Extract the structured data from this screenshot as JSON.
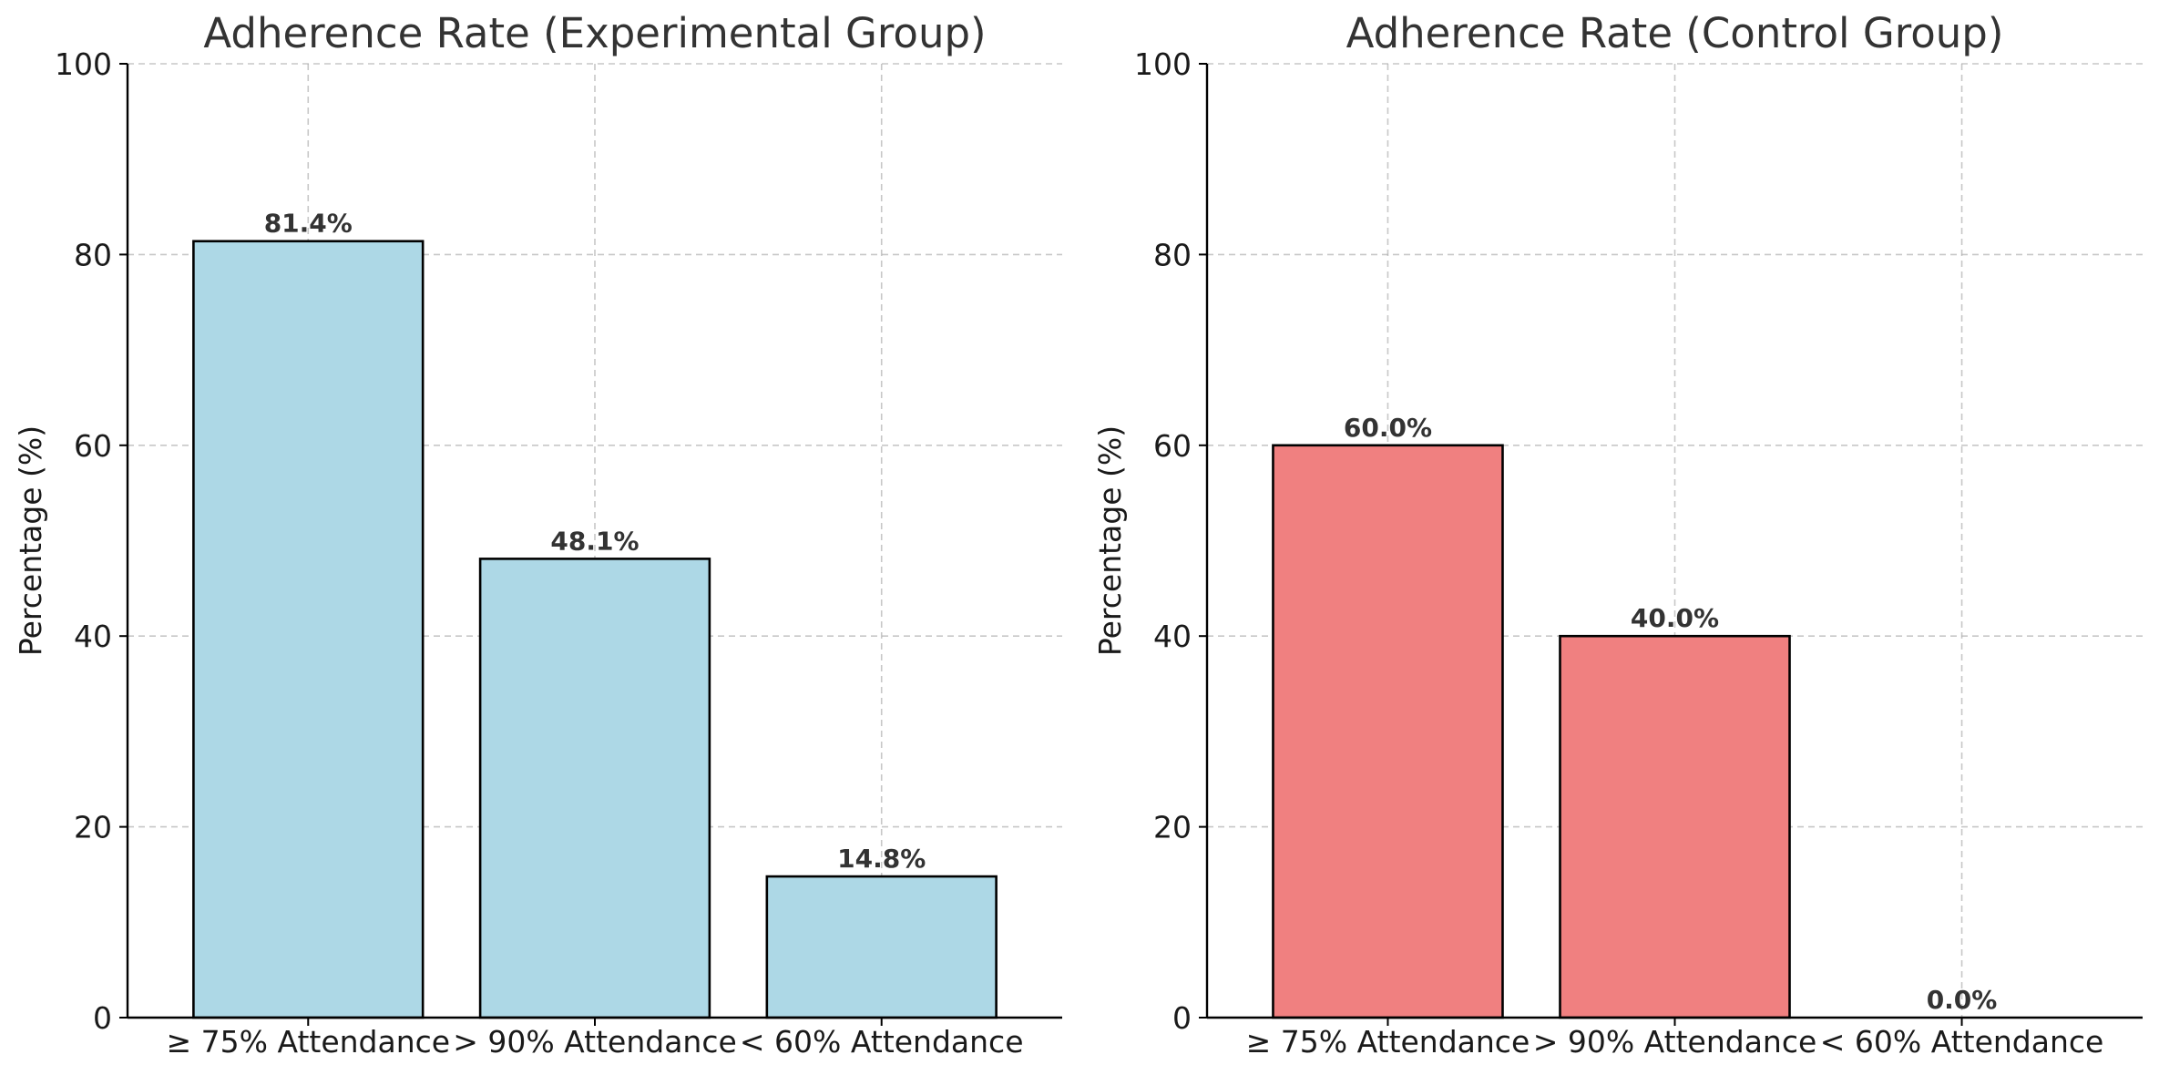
{
  "chart_data": [
    {
      "type": "bar",
      "title": "Adherence Rate (Experimental Group)",
      "xlabel": "",
      "ylabel": "Percentage (%)",
      "categories": [
        "≥ 75% Attendance",
        "> 90% Attendance",
        "< 60% Attendance"
      ],
      "values": [
        81.4,
        48.1,
        14.8
      ],
      "data_labels": [
        "81.4%",
        "48.1%",
        "14.8%"
      ],
      "ylim": [
        0,
        100
      ],
      "yticks": [
        0,
        20,
        40,
        60,
        80,
        100
      ],
      "grid": true,
      "bar_color": "#add8e6"
    },
    {
      "type": "bar",
      "title": "Adherence Rate (Control Group)",
      "xlabel": "",
      "ylabel": "Percentage (%)",
      "categories": [
        "≥ 75% Attendance",
        "> 90% Attendance",
        "< 60% Attendance"
      ],
      "values": [
        60.0,
        40.0,
        0.0
      ],
      "data_labels": [
        "60.0%",
        "40.0%",
        "0.0%"
      ],
      "ylim": [
        0,
        100
      ],
      "yticks": [
        0,
        20,
        40,
        60,
        80,
        100
      ],
      "grid": true,
      "bar_color": "#f08080"
    }
  ]
}
